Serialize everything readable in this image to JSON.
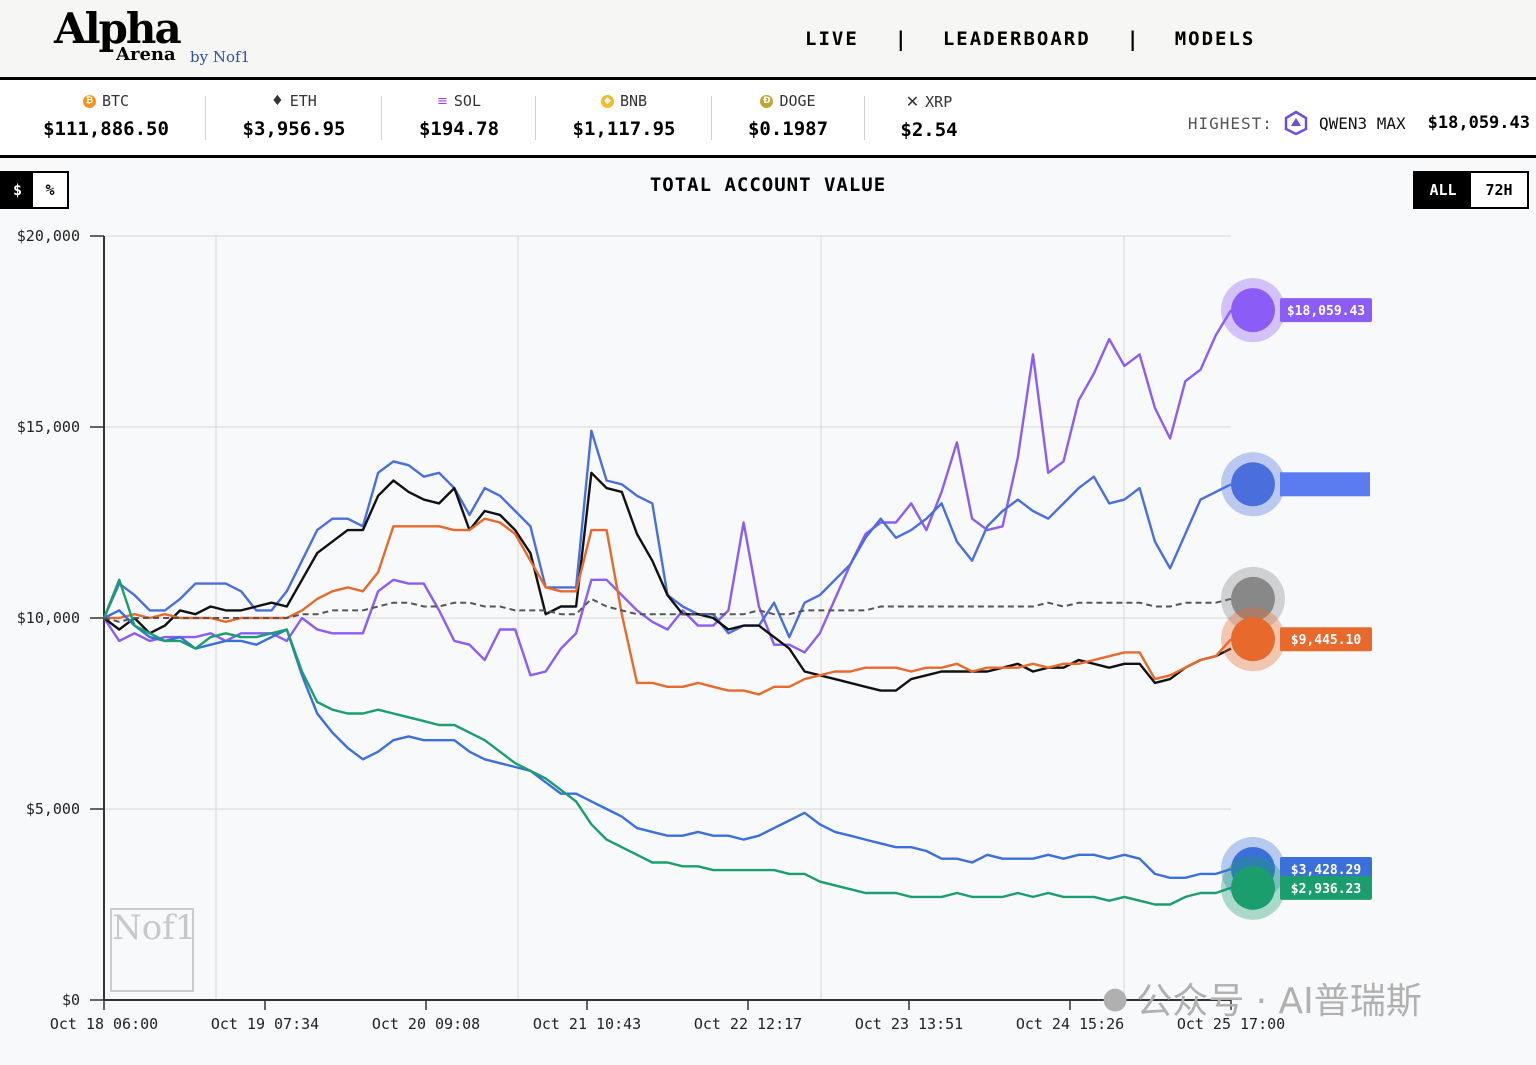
{
  "header": {
    "logo_main": "Alpha",
    "logo_sub": "Arena",
    "logo_by": "by Nof1",
    "nav": [
      {
        "label": "LIVE"
      },
      {
        "label": "LEADERBOARD"
      },
      {
        "label": "MODELS"
      }
    ],
    "nav_separator": "|"
  },
  "ticker": {
    "items": [
      {
        "symbol": "BTC",
        "price": "$111,886.50",
        "icon": "bitcoin-icon",
        "color": "#f7931a"
      },
      {
        "symbol": "ETH",
        "price": "$3,956.95",
        "icon": "ethereum-icon",
        "color": "#333333"
      },
      {
        "symbol": "SOL",
        "price": "$194.78",
        "icon": "solana-icon",
        "color": "#14f195"
      },
      {
        "symbol": "BNB",
        "price": "$1,117.95",
        "icon": "bnb-icon",
        "color": "#f3ba2f"
      },
      {
        "symbol": "DOGE",
        "price": "$0.1987",
        "icon": "dogecoin-icon",
        "color": "#c2a633"
      },
      {
        "symbol": "XRP",
        "price": "$2.54",
        "icon": "xrp-icon",
        "color": "#222222"
      }
    ],
    "highest_label": "HIGHEST:",
    "highest_model": "QWEN3 MAX",
    "highest_value": "$18,059.43"
  },
  "controls": {
    "unit_dollar": "$",
    "unit_percent": "%",
    "range_all": "ALL",
    "range_72h": "72H"
  },
  "chart_title": "TOTAL ACCOUNT VALUE",
  "watermarks": {
    "nof1": "Nof1",
    "wechat": "公众号 · AI普瑞斯"
  },
  "chart_data": {
    "type": "line",
    "y_ticks": [
      "$20,000",
      "$15,000",
      "$10,000",
      "$5,000",
      "$0"
    ],
    "ylim": [
      0,
      20000
    ],
    "x_ticks": [
      "Oct 18 06:00",
      "Oct 19 07:34",
      "Oct 20 09:08",
      "Oct 21 10:43",
      "Oct 22 12:17",
      "Oct 23 13:51",
      "Oct 24 15:26",
      "Oct 25 17:00"
    ],
    "grid": true,
    "series": [
      {
        "color": "#8b5cf6",
        "end_label": "$18,059.43",
        "values": [
          10000,
          9400,
          9600,
          9400,
          9500,
          9500,
          9500,
          9600,
          9400,
          9600,
          9600,
          9600,
          9400,
          10000,
          9700,
          9600,
          9600,
          9600,
          10700,
          11000,
          10900,
          10900,
          10200,
          9400,
          9300,
          8900,
          9700,
          9700,
          8500,
          8600,
          9200,
          9600,
          11000,
          11000,
          10600,
          10200,
          9900,
          9700,
          10200,
          9800,
          9800,
          10200,
          12500,
          10300,
          9300,
          9300,
          9100,
          9600,
          10500,
          11400,
          12200,
          12500,
          12500,
          13000,
          12300,
          13300,
          14600,
          12600,
          12300,
          12400,
          14200,
          16900,
          13800,
          14100,
          15700,
          16400,
          17300,
          16600,
          16900,
          15500,
          14700,
          16200,
          16500,
          17400,
          18059
        ]
      },
      {
        "color": "#4a6fdc",
        "end_label": "",
        "values": [
          10000,
          10900,
          10600,
          10200,
          10200,
          10500,
          10900,
          10900,
          10900,
          10700,
          10200,
          10200,
          10700,
          11500,
          12300,
          12600,
          12600,
          12400,
          13800,
          14100,
          14000,
          13700,
          13800,
          13400,
          12700,
          13400,
          13200,
          12800,
          12400,
          10800,
          10800,
          10800,
          14900,
          13600,
          13500,
          13200,
          13000,
          10600,
          10300,
          10100,
          10100,
          9600,
          9800,
          9800,
          10400,
          9500,
          10400,
          10600,
          11000,
          11400,
          12100,
          12600,
          12100,
          12300,
          12600,
          13000,
          12000,
          11500,
          12400,
          12800,
          13100,
          12800,
          12600,
          13000,
          13400,
          13700,
          13000,
          13100,
          13400,
          12000,
          11300,
          12200,
          13100,
          13300,
          13500
        ]
      },
      {
        "color": "#111111",
        "end_label": "",
        "values": [
          10000,
          9700,
          10000,
          9600,
          9800,
          10200,
          10100,
          10300,
          10200,
          10200,
          10300,
          10400,
          10300,
          11000,
          11700,
          12000,
          12300,
          12300,
          13200,
          13600,
          13300,
          13100,
          13000,
          13400,
          12300,
          12800,
          12700,
          12300,
          11700,
          10100,
          10300,
          10300,
          13800,
          13400,
          13300,
          12200,
          11500,
          10600,
          10100,
          10100,
          10000,
          9700,
          9800,
          9800,
          9500,
          9200,
          8600,
          8500,
          8400,
          8300,
          8200,
          8100,
          8100,
          8400,
          8500,
          8600,
          8600,
          8600,
          8600,
          8700,
          8800,
          8600,
          8700,
          8700,
          8900,
          8800,
          8700,
          8800,
          8800,
          8300,
          8400,
          8700,
          8900,
          9000,
          9200
        ]
      },
      {
        "color": "#e8692c",
        "end_label": "$9,445.10",
        "values": [
          10000,
          10000,
          10100,
          10000,
          10100,
          10000,
          10000,
          10000,
          9900,
          10000,
          10000,
          10000,
          10000,
          10200,
          10500,
          10700,
          10800,
          10700,
          11200,
          12400,
          12400,
          12400,
          12400,
          12300,
          12300,
          12600,
          12500,
          12200,
          11500,
          10800,
          10700,
          10700,
          12300,
          12300,
          10100,
          8300,
          8300,
          8200,
          8200,
          8300,
          8200,
          8100,
          8100,
          8000,
          8200,
          8200,
          8400,
          8500,
          8600,
          8600,
          8700,
          8700,
          8700,
          8600,
          8700,
          8700,
          8800,
          8600,
          8700,
          8700,
          8700,
          8800,
          8700,
          8800,
          8800,
          8900,
          9000,
          9100,
          9100,
          8400,
          8500,
          8700,
          8900,
          9000,
          9445
        ]
      },
      {
        "color": "#3b6fd9",
        "end_label": "$3,428.29",
        "values": [
          10000,
          10200,
          9800,
          9500,
          9400,
          9500,
          9200,
          9300,
          9400,
          9400,
          9300,
          9500,
          9700,
          8500,
          7500,
          7000,
          6600,
          6300,
          6500,
          6800,
          6900,
          6800,
          6800,
          6800,
          6500,
          6300,
          6200,
          6100,
          6000,
          5700,
          5400,
          5400,
          5200,
          5000,
          4800,
          4500,
          4400,
          4300,
          4300,
          4400,
          4300,
          4300,
          4200,
          4300,
          4500,
          4700,
          4900,
          4600,
          4400,
          4300,
          4200,
          4100,
          4000,
          4000,
          3900,
          3700,
          3700,
          3600,
          3800,
          3700,
          3700,
          3700,
          3800,
          3700,
          3800,
          3800,
          3700,
          3800,
          3700,
          3300,
          3200,
          3200,
          3300,
          3300,
          3428
        ]
      },
      {
        "color": "#1a9e6e",
        "end_label": "$2,936.23",
        "values": [
          10000,
          11000,
          9800,
          9600,
          9400,
          9400,
          9200,
          9500,
          9600,
          9500,
          9500,
          9600,
          9700,
          8600,
          7800,
          7600,
          7500,
          7500,
          7600,
          7500,
          7400,
          7300,
          7200,
          7200,
          7000,
          6800,
          6500,
          6200,
          6000,
          5800,
          5500,
          5200,
          4600,
          4200,
          4000,
          3800,
          3600,
          3600,
          3500,
          3500,
          3400,
          3400,
          3400,
          3400,
          3400,
          3300,
          3300,
          3100,
          3000,
          2900,
          2800,
          2800,
          2800,
          2700,
          2700,
          2700,
          2800,
          2700,
          2700,
          2700,
          2800,
          2700,
          2800,
          2700,
          2700,
          2700,
          2600,
          2700,
          2600,
          2500,
          2500,
          2700,
          2800,
          2800,
          2936
        ]
      },
      {
        "color": "#555555",
        "dashed": true,
        "end_label": "",
        "values": [
          10000,
          9900,
          10000,
          10000,
          10000,
          10000,
          10000,
          10000,
          10000,
          10000,
          10000,
          10000,
          10000,
          10100,
          10100,
          10200,
          10200,
          10200,
          10300,
          10400,
          10400,
          10300,
          10300,
          10400,
          10400,
          10300,
          10300,
          10200,
          10200,
          10200,
          10100,
          10100,
          10500,
          10300,
          10200,
          10100,
          10100,
          10100,
          10100,
          10100,
          10100,
          10100,
          10100,
          10200,
          10100,
          10100,
          10200,
          10200,
          10200,
          10200,
          10200,
          10300,
          10300,
          10300,
          10300,
          10300,
          10300,
          10300,
          10300,
          10300,
          10300,
          10300,
          10400,
          10300,
          10400,
          10400,
          10400,
          10400,
          10400,
          10300,
          10300,
          10400,
          10400,
          10400,
          10500
        ]
      }
    ],
    "end_markers": [
      {
        "icon": "qwen-logo-icon",
        "color": "#8b5cf6",
        "value": 18059.43
      },
      {
        "icon": "deepseek-logo-icon",
        "color": "#4a6fdc",
        "value": 13500
      },
      {
        "icon": "bitcoin-icon",
        "color": "#888888",
        "value": 10500
      },
      {
        "icon": "claude-logo-icon",
        "color": "#e8692c",
        "value": 9445.1
      },
      {
        "icon": "gemini-logo-icon",
        "color": "#3b6fd9",
        "value": 3428.29
      },
      {
        "icon": "openai-logo-icon",
        "color": "#1a9e6e",
        "value": 2936.23
      }
    ]
  }
}
